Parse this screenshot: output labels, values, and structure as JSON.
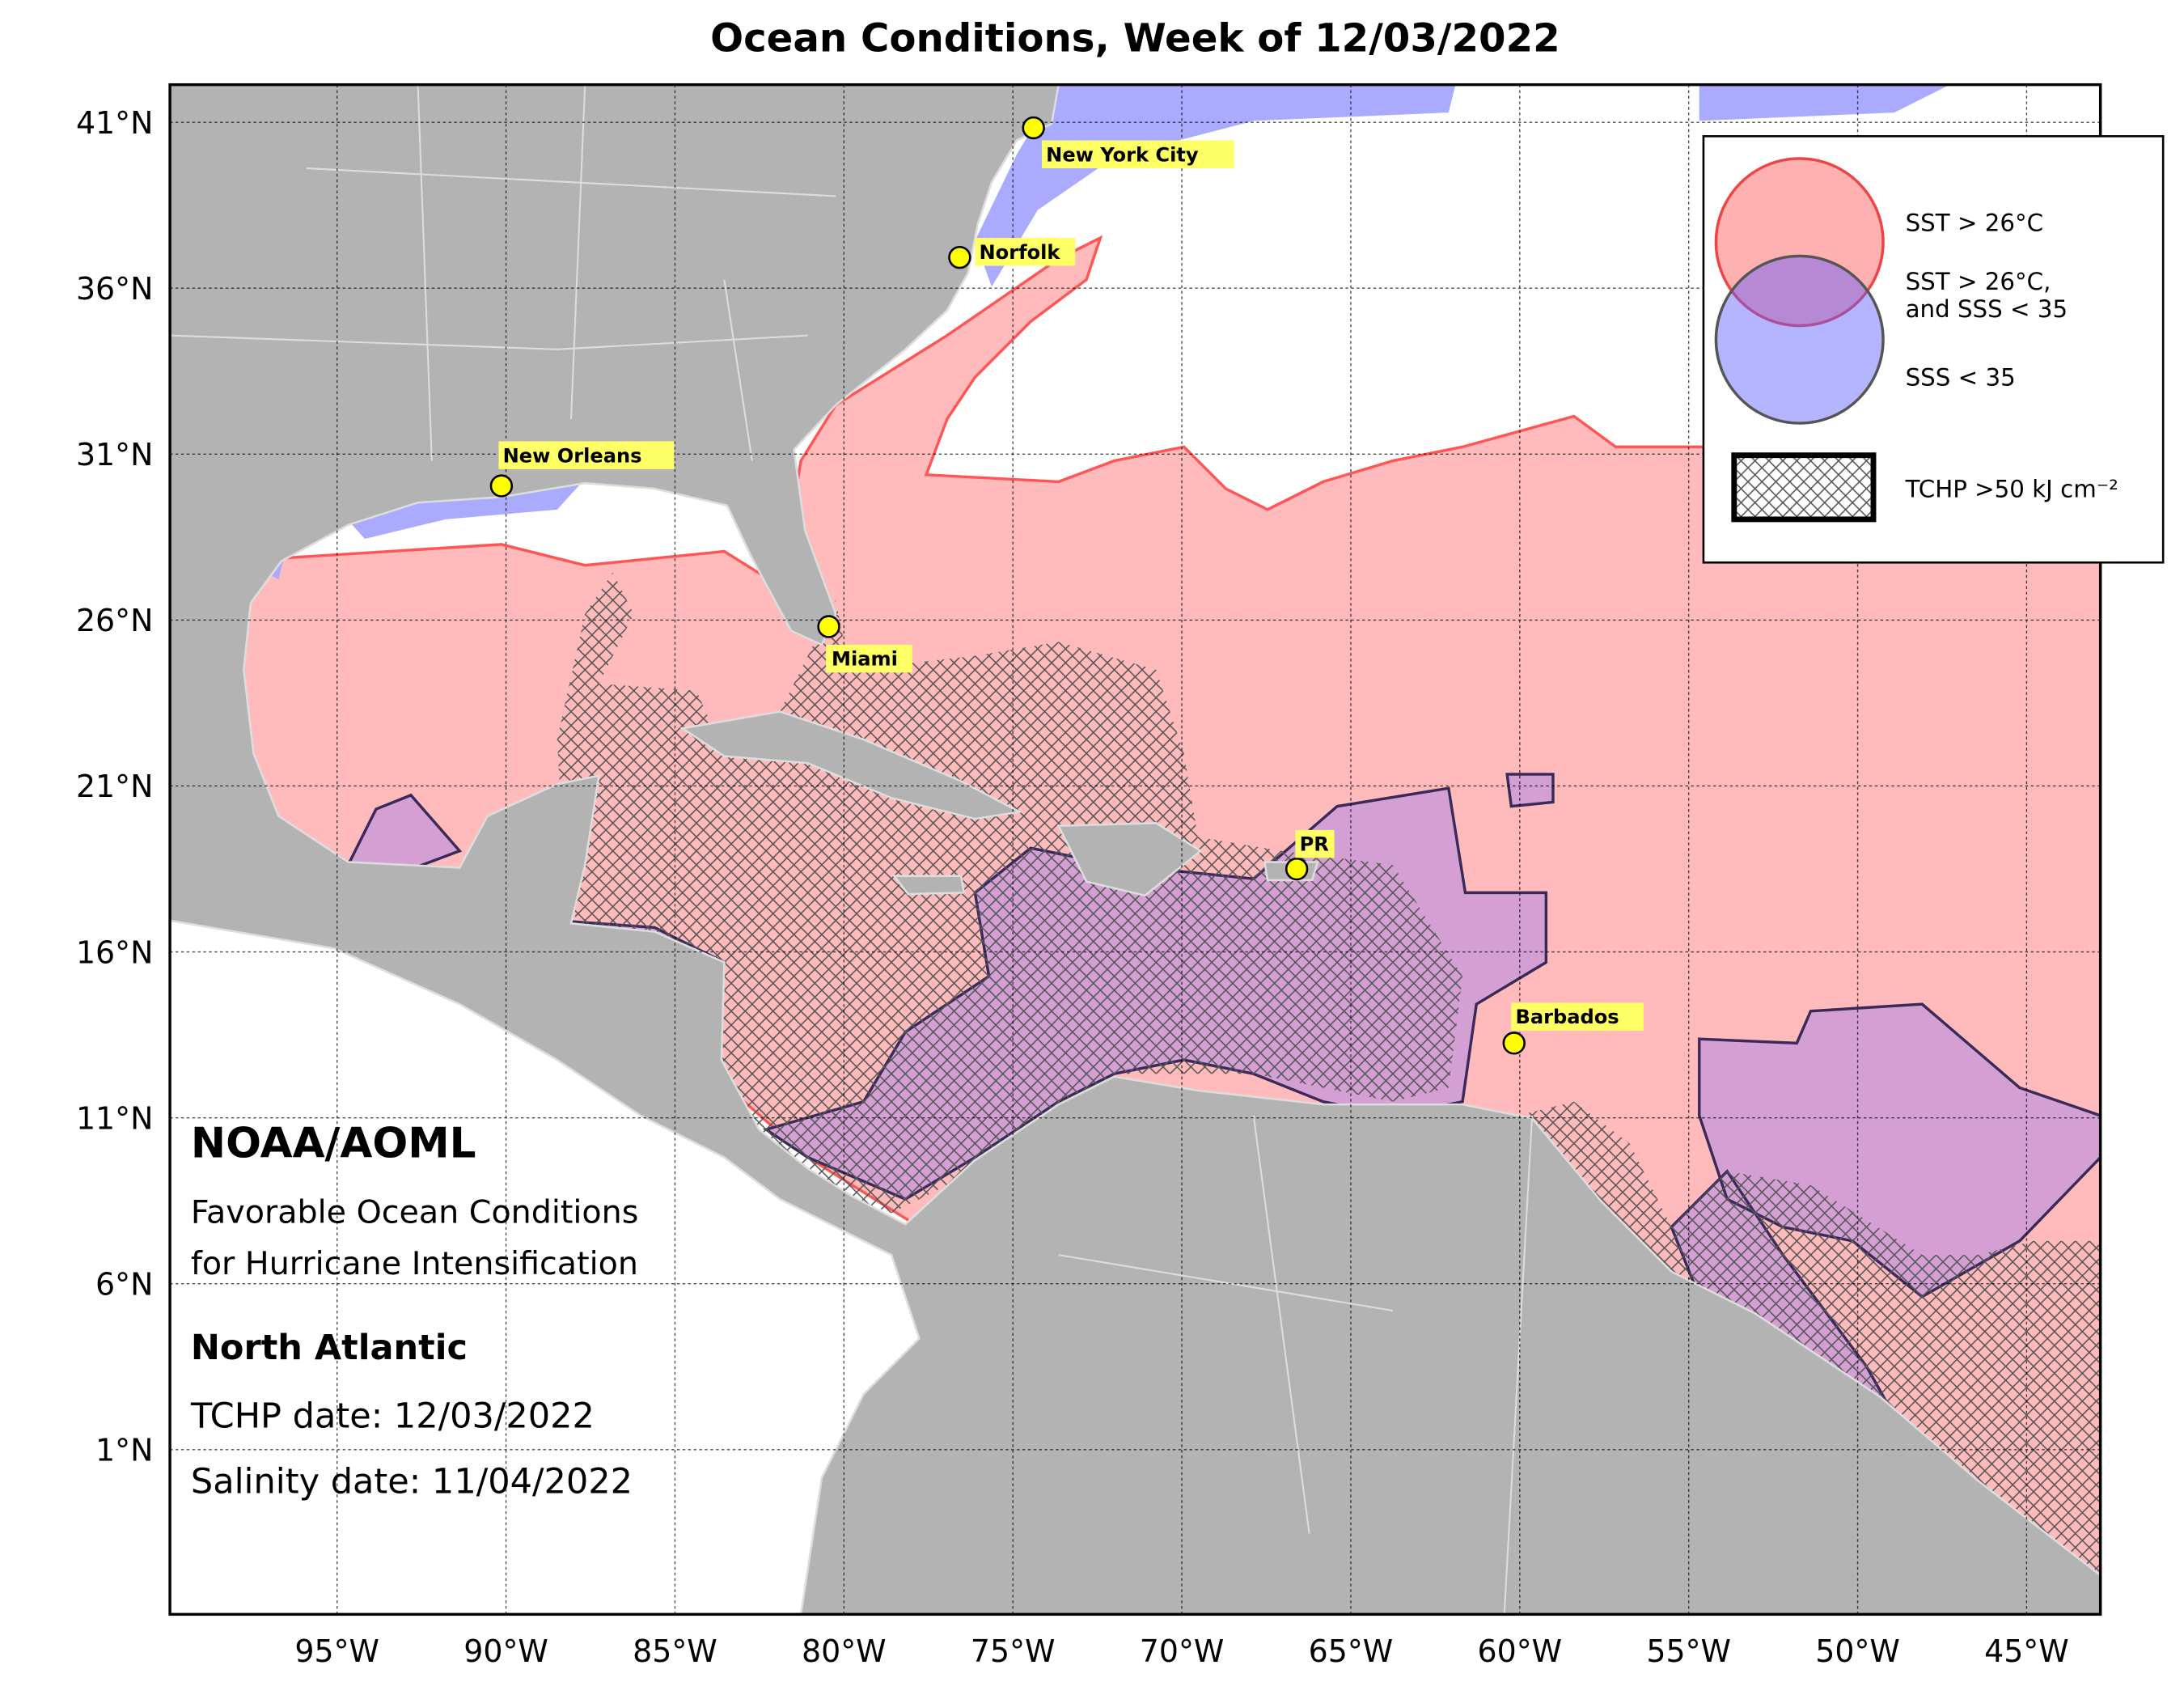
{
  "title": "Ocean Conditions, Week of 12/03/2022",
  "axes": {
    "lat_ticks": [
      "41°N",
      "36°N",
      "31°N",
      "26°N",
      "21°N",
      "16°N",
      "11°N",
      "6°N",
      "1°N"
    ],
    "lon_ticks": [
      "95°W",
      "90°W",
      "85°W",
      "80°W",
      "75°W",
      "70°W",
      "65°W",
      "60°W",
      "55°W",
      "50°W",
      "45°W"
    ]
  },
  "cities": [
    "New York City",
    "Norfolk",
    "New Orleans",
    "Miami",
    "PR",
    "Barbados"
  ],
  "legend": {
    "items": [
      {
        "lines": [
          "SST > 26°C"
        ]
      },
      {
        "lines": [
          "SST > 26°C,",
          "and SSS < 35"
        ]
      },
      {
        "lines": [
          "SSS < 35"
        ]
      },
      {
        "lines": [
          "TCHP >50 kJ cm⁻²"
        ]
      }
    ]
  },
  "info": {
    "org": "NOAA/AOML",
    "subtitle": [
      "Favorable Ocean Conditions",
      "for Hurricane Intensification"
    ],
    "region": "North Atlantic",
    "tchp_date": "TCHP date: 12/03/2022",
    "salinity_date": "Salinity date: 11/04/2022"
  }
}
